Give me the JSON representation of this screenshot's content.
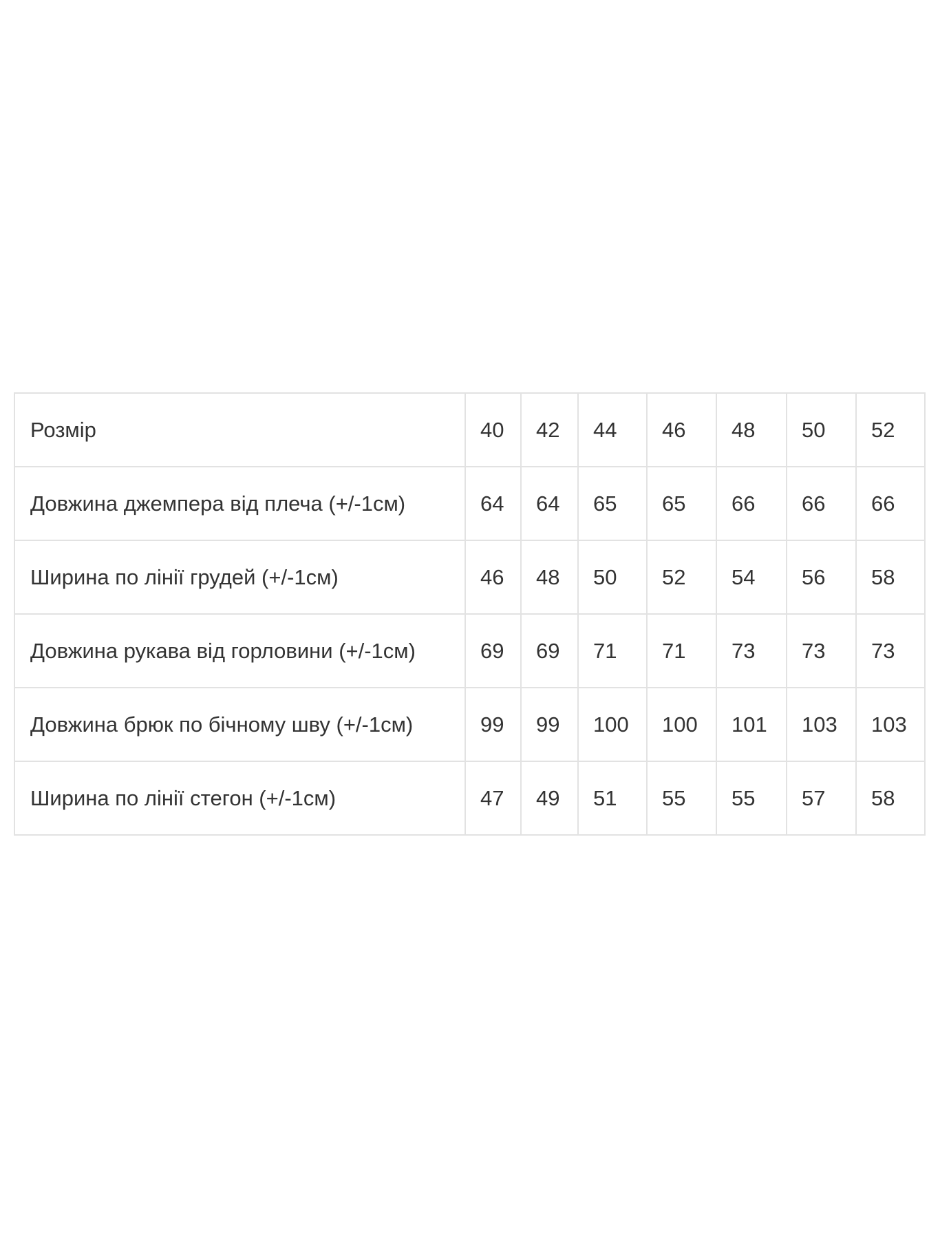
{
  "size_table": {
    "rows": [
      {
        "label": "Розмір",
        "values": [
          "40",
          "42",
          "44",
          "46",
          "48",
          "50",
          "52"
        ]
      },
      {
        "label": "Довжина джемпера від плеча (+/-1см)",
        "values": [
          "64",
          "64",
          "65",
          "65",
          "66",
          "66",
          "66"
        ]
      },
      {
        "label": "Ширина по лінії грудей (+/-1см)",
        "values": [
          "46",
          "48",
          "50",
          "52",
          "54",
          "56",
          "58"
        ]
      },
      {
        "label": "Довжина рукава від горловини (+/-1см)",
        "values": [
          "69",
          "69",
          "71",
          "71",
          "73",
          "73",
          "73"
        ]
      },
      {
        "label": "Довжина брюк по бічному шву (+/-1см)",
        "values": [
          "99",
          "99",
          "100",
          "100",
          "101",
          "103",
          "103"
        ]
      },
      {
        "label": "Ширина по лінії стегон (+/-1см)",
        "values": [
          "47",
          "49",
          "51",
          "55",
          "55",
          "57",
          "58"
        ]
      }
    ]
  }
}
